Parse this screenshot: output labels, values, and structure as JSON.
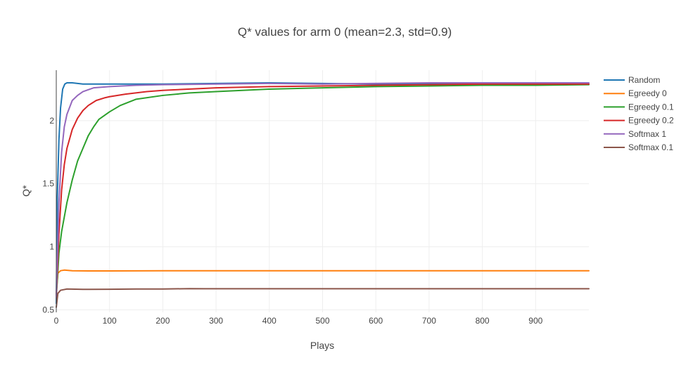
{
  "chart_data": {
    "type": "line",
    "title": "Q* values for arm 0 (mean=2.3, std=0.9)",
    "xlabel": "Plays",
    "ylabel": "Q*",
    "xlim": [
      0,
      1000
    ],
    "ylim": [
      0.48,
      2.4
    ],
    "xticks": [
      0,
      100,
      200,
      300,
      400,
      500,
      600,
      700,
      800,
      900
    ],
    "yticks": [
      0.5,
      1,
      1.5,
      2
    ],
    "ytick_labels": [
      "0.5",
      "1",
      "1.5",
      "2"
    ],
    "grid": true,
    "legend_position": "right",
    "series": [
      {
        "name": "Random",
        "color": "#1f77b4",
        "points": [
          [
            0,
            0.55
          ],
          [
            2,
            1.4
          ],
          [
            5,
            1.85
          ],
          [
            8,
            2.1
          ],
          [
            12,
            2.25
          ],
          [
            16,
            2.29
          ],
          [
            20,
            2.3
          ],
          [
            30,
            2.3
          ],
          [
            50,
            2.29
          ],
          [
            100,
            2.29
          ],
          [
            200,
            2.29
          ],
          [
            400,
            2.3
          ],
          [
            600,
            2.29
          ],
          [
            800,
            2.29
          ],
          [
            1000,
            2.29
          ]
        ]
      },
      {
        "name": "Egreedy 0",
        "color": "#ff7f0e",
        "points": [
          [
            0,
            0.62
          ],
          [
            3,
            0.79
          ],
          [
            8,
            0.81
          ],
          [
            15,
            0.815
          ],
          [
            30,
            0.81
          ],
          [
            60,
            0.808
          ],
          [
            100,
            0.808
          ],
          [
            200,
            0.81
          ],
          [
            400,
            0.81
          ],
          [
            600,
            0.81
          ],
          [
            800,
            0.81
          ],
          [
            1000,
            0.81
          ]
        ]
      },
      {
        "name": "Egreedy 0.1",
        "color": "#2ca02c",
        "points": [
          [
            0,
            0.6
          ],
          [
            5,
            0.95
          ],
          [
            10,
            1.12
          ],
          [
            20,
            1.35
          ],
          [
            30,
            1.53
          ],
          [
            40,
            1.68
          ],
          [
            50,
            1.78
          ],
          [
            60,
            1.88
          ],
          [
            70,
            1.95
          ],
          [
            80,
            2.01
          ],
          [
            100,
            2.07
          ],
          [
            120,
            2.12
          ],
          [
            150,
            2.17
          ],
          [
            200,
            2.2
          ],
          [
            250,
            2.22
          ],
          [
            300,
            2.23
          ],
          [
            400,
            2.25
          ],
          [
            500,
            2.26
          ],
          [
            600,
            2.27
          ],
          [
            700,
            2.275
          ],
          [
            800,
            2.28
          ],
          [
            900,
            2.28
          ],
          [
            1000,
            2.285
          ]
        ]
      },
      {
        "name": "Egreedy 0.2",
        "color": "#d62728",
        "points": [
          [
            0,
            0.6
          ],
          [
            5,
            1.1
          ],
          [
            10,
            1.45
          ],
          [
            15,
            1.65
          ],
          [
            20,
            1.78
          ],
          [
            30,
            1.93
          ],
          [
            40,
            2.02
          ],
          [
            50,
            2.08
          ],
          [
            60,
            2.12
          ],
          [
            75,
            2.16
          ],
          [
            90,
            2.18
          ],
          [
            100,
            2.19
          ],
          [
            130,
            2.21
          ],
          [
            170,
            2.23
          ],
          [
            200,
            2.24
          ],
          [
            300,
            2.26
          ],
          [
            400,
            2.27
          ],
          [
            500,
            2.275
          ],
          [
            600,
            2.28
          ],
          [
            800,
            2.29
          ],
          [
            1000,
            2.29
          ]
        ]
      },
      {
        "name": "Softmax 1",
        "color": "#9467bd",
        "points": [
          [
            0,
            0.6
          ],
          [
            5,
            1.35
          ],
          [
            10,
            1.75
          ],
          [
            15,
            1.95
          ],
          [
            20,
            2.05
          ],
          [
            30,
            2.16
          ],
          [
            40,
            2.2
          ],
          [
            50,
            2.23
          ],
          [
            70,
            2.26
          ],
          [
            100,
            2.27
          ],
          [
            150,
            2.28
          ],
          [
            200,
            2.285
          ],
          [
            300,
            2.29
          ],
          [
            400,
            2.295
          ],
          [
            500,
            2.29
          ],
          [
            700,
            2.3
          ],
          [
            1000,
            2.3
          ]
        ]
      },
      {
        "name": "Softmax 0.1",
        "color": "#8c564b",
        "points": [
          [
            0,
            0.52
          ],
          [
            3,
            0.63
          ],
          [
            8,
            0.655
          ],
          [
            20,
            0.665
          ],
          [
            50,
            0.662
          ],
          [
            100,
            0.663
          ],
          [
            150,
            0.665
          ],
          [
            200,
            0.665
          ],
          [
            250,
            0.668
          ],
          [
            280,
            0.667
          ],
          [
            400,
            0.667
          ],
          [
            600,
            0.667
          ],
          [
            800,
            0.667
          ],
          [
            1000,
            0.667
          ]
        ]
      }
    ]
  }
}
